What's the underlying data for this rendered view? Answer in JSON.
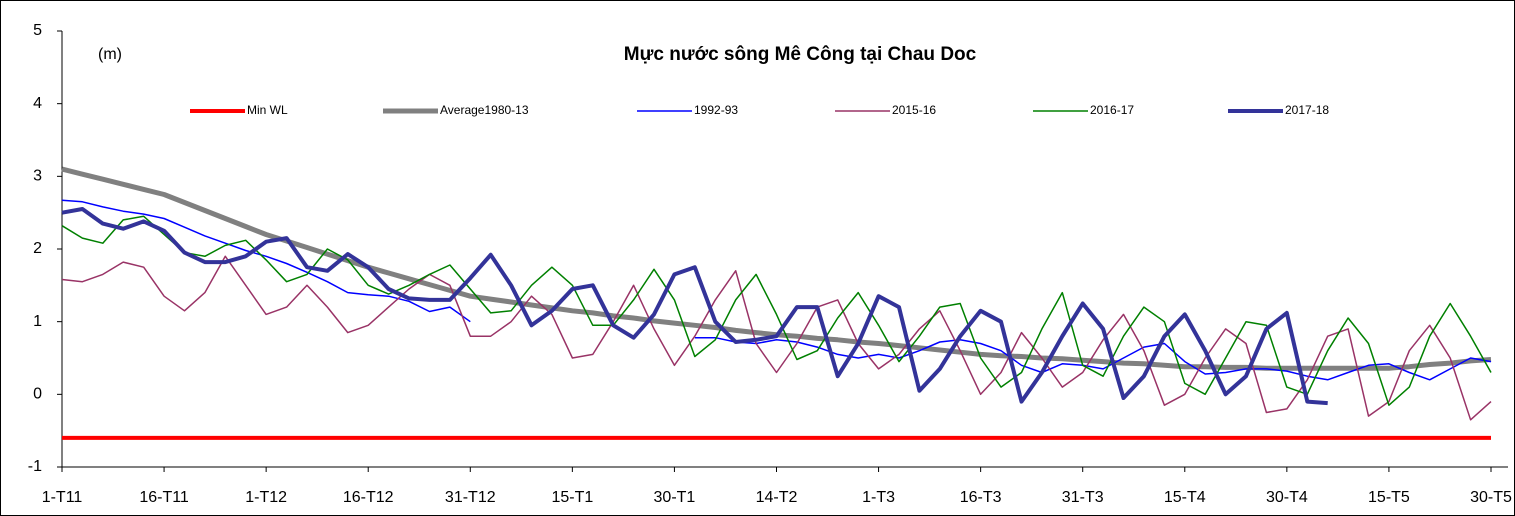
{
  "chart_data": {
    "type": "line",
    "title": "Mực nước sông Mê Công tại Chau Doc",
    "y_label": "(m)",
    "x": [
      0,
      3,
      6,
      9,
      12,
      15,
      18,
      21,
      24,
      27,
      30,
      33,
      36,
      39,
      42,
      45,
      48,
      51,
      54,
      57,
      60,
      63,
      66,
      69,
      72,
      75,
      78,
      81,
      84,
      87,
      90,
      93,
      96,
      99,
      102,
      105,
      108,
      111,
      114,
      117,
      120,
      123,
      126,
      129,
      132,
      135,
      138,
      141,
      144,
      147,
      150,
      153,
      156,
      159,
      162,
      165,
      168,
      171,
      174,
      177,
      180,
      183,
      186,
      189,
      192,
      195,
      198,
      201,
      204,
      207,
      210
    ],
    "xlim": [
      0,
      212.5
    ],
    "xticks": [
      {
        "value": 0,
        "label": "1-T11"
      },
      {
        "value": 15,
        "label": "16-T11"
      },
      {
        "value": 30,
        "label": "1-T12"
      },
      {
        "value": 45,
        "label": "16-T12"
      },
      {
        "value": 60,
        "label": "31-T12"
      },
      {
        "value": 75,
        "label": "15-T1"
      },
      {
        "value": 90,
        "label": "30-T1"
      },
      {
        "value": 105,
        "label": "14-T2"
      },
      {
        "value": 120,
        "label": "1-T3"
      },
      {
        "value": 135,
        "label": "16-T3"
      },
      {
        "value": 150,
        "label": "31-T3"
      },
      {
        "value": 165,
        "label": "15-T4"
      },
      {
        "value": 180,
        "label": "30-T4"
      },
      {
        "value": 195,
        "label": "15-T5"
      },
      {
        "value": 210,
        "label": "30-T5"
      }
    ],
    "ylim": [
      -1,
      5
    ],
    "yticks": [
      -1,
      0,
      1,
      2,
      3,
      4,
      5
    ],
    "grid": false,
    "legend": "top",
    "series": [
      {
        "name": "Min WL",
        "color": "#ff0000",
        "width": 4,
        "values": [
          -0.6,
          -0.6,
          -0.6,
          -0.6,
          -0.6,
          -0.6,
          -0.6,
          -0.6,
          -0.6,
          -0.6,
          -0.6,
          -0.6,
          -0.6,
          -0.6,
          -0.6,
          -0.6,
          -0.6,
          -0.6,
          -0.6,
          -0.6,
          -0.6,
          -0.6,
          -0.6,
          -0.6,
          -0.6,
          -0.6,
          -0.6,
          -0.6,
          -0.6,
          -0.6,
          -0.6,
          -0.6,
          -0.6,
          -0.6,
          -0.6,
          -0.6,
          -0.6,
          -0.6,
          -0.6,
          -0.6,
          -0.6,
          -0.6,
          -0.6,
          -0.6,
          -0.6,
          -0.6,
          -0.6,
          -0.6,
          -0.6,
          -0.6,
          -0.6,
          -0.6,
          -0.6,
          -0.6,
          -0.6,
          -0.6,
          -0.6,
          -0.6,
          -0.6,
          -0.6,
          -0.6,
          -0.6,
          -0.6,
          -0.6,
          -0.6,
          -0.6,
          -0.6,
          -0.6,
          -0.6,
          -0.6,
          -0.6
        ]
      },
      {
        "name": "Average1980-13",
        "color": "#808080",
        "width": 5,
        "values": [
          3.1,
          3.03,
          2.96,
          2.89,
          2.82,
          2.75,
          2.64,
          2.53,
          2.42,
          2.31,
          2.2,
          2.11,
          2.02,
          1.93,
          1.84,
          1.75,
          1.67,
          1.59,
          1.51,
          1.43,
          1.35,
          1.31,
          1.27,
          1.23,
          1.19,
          1.15,
          1.12,
          1.08,
          1.05,
          1.01,
          0.98,
          0.95,
          0.92,
          0.88,
          0.85,
          0.82,
          0.8,
          0.77,
          0.75,
          0.72,
          0.7,
          0.67,
          0.64,
          0.61,
          0.58,
          0.55,
          0.53,
          0.52,
          0.5,
          0.49,
          0.47,
          0.45,
          0.43,
          0.42,
          0.4,
          0.38,
          0.38,
          0.37,
          0.37,
          0.36,
          0.36,
          0.36,
          0.36,
          0.36,
          0.36,
          0.36,
          0.38,
          0.41,
          0.43,
          0.46,
          0.48
        ]
      },
      {
        "name": "1992-93",
        "color": "#0000ff",
        "width": 1.5,
        "values": [
          2.67,
          2.65,
          2.58,
          2.52,
          2.48,
          2.42,
          2.3,
          2.18,
          2.08,
          1.98,
          1.9,
          1.8,
          1.68,
          1.55,
          1.4,
          1.37,
          1.35,
          1.28,
          1.14,
          1.2,
          1.0,
          null,
          null,
          null,
          null,
          null,
          null,
          null,
          null,
          null,
          null,
          0.78,
          0.78,
          0.72,
          0.7,
          0.75,
          0.72,
          0.65,
          0.55,
          0.5,
          0.55,
          0.5,
          0.6,
          0.72,
          0.75,
          0.7,
          0.6,
          0.4,
          0.3,
          0.42,
          0.4,
          0.35,
          0.5,
          0.65,
          0.7,
          0.45,
          0.28,
          0.3,
          0.35,
          0.35,
          0.32,
          0.25,
          0.2,
          0.3,
          0.4,
          0.42,
          0.3,
          0.2,
          0.35,
          0.5,
          0.45
        ]
      },
      {
        "name": "2015-16",
        "color": "#993366",
        "width": 1.5,
        "values": [
          1.58,
          1.55,
          1.65,
          1.82,
          1.75,
          1.35,
          1.15,
          1.4,
          1.9,
          1.5,
          1.1,
          1.2,
          1.5,
          1.2,
          0.85,
          0.95,
          1.2,
          1.45,
          1.65,
          1.5,
          0.8,
          0.8,
          1.0,
          1.35,
          1.1,
          0.5,
          0.55,
          1.0,
          1.5,
          0.9,
          0.4,
          0.8,
          1.3,
          1.7,
          0.7,
          0.3,
          0.7,
          1.2,
          1.3,
          0.7,
          0.35,
          0.55,
          0.9,
          1.15,
          0.6,
          0.0,
          0.3,
          0.85,
          0.5,
          0.1,
          0.3,
          0.75,
          1.1,
          0.6,
          -0.15,
          0.0,
          0.5,
          0.9,
          0.7,
          -0.25,
          -0.2,
          0.2,
          0.8,
          0.9,
          -0.3,
          -0.1,
          0.6,
          0.95,
          0.5,
          -0.35,
          -0.1
        ]
      },
      {
        "name": "2016-17",
        "color": "#008000",
        "width": 1.5,
        "values": [
          2.32,
          2.15,
          2.08,
          2.4,
          2.45,
          2.2,
          1.95,
          1.9,
          2.05,
          2.12,
          1.85,
          1.55,
          1.65,
          2.0,
          1.85,
          1.5,
          1.38,
          1.5,
          1.65,
          1.78,
          1.45,
          1.12,
          1.15,
          1.5,
          1.75,
          1.5,
          0.95,
          0.95,
          1.3,
          1.72,
          1.3,
          0.52,
          0.75,
          1.3,
          1.65,
          1.1,
          0.48,
          0.6,
          1.05,
          1.4,
          0.95,
          0.45,
          0.8,
          1.2,
          1.25,
          0.5,
          0.1,
          0.3,
          0.9,
          1.4,
          0.4,
          0.25,
          0.8,
          1.2,
          1.0,
          0.15,
          0.0,
          0.5,
          1.0,
          0.95,
          0.1,
          0.0,
          0.6,
          1.05,
          0.7,
          -0.15,
          0.1,
          0.8,
          1.25,
          0.8,
          0.3
        ]
      },
      {
        "name": "2017-18",
        "color": "#333399",
        "width": 4,
        "values": [
          2.5,
          2.55,
          2.35,
          2.28,
          2.38,
          2.25,
          1.95,
          1.82,
          1.82,
          1.9,
          2.1,
          2.15,
          1.75,
          1.7,
          1.93,
          1.75,
          1.45,
          1.32,
          1.3,
          1.3,
          1.6,
          1.92,
          1.5,
          0.95,
          1.15,
          1.45,
          1.5,
          0.95,
          0.78,
          1.1,
          1.65,
          1.75,
          1.0,
          0.72,
          0.75,
          0.8,
          1.2,
          1.2,
          0.25,
          0.7,
          1.35,
          1.2,
          0.05,
          0.35,
          0.8,
          1.15,
          1.0,
          -0.1,
          0.3,
          0.8,
          1.25,
          0.9,
          -0.05,
          0.25,
          0.8,
          1.1,
          0.6,
          0.0,
          0.25,
          0.9,
          1.12,
          -0.1,
          -0.12,
          null,
          null,
          null,
          null,
          null,
          null,
          null,
          null
        ]
      }
    ]
  }
}
